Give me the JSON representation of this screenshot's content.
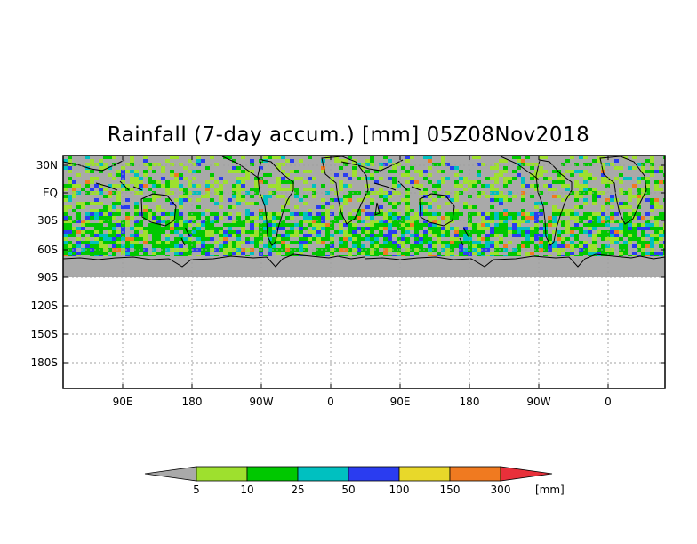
{
  "title": "Rainfall (7-day accum.) [mm] 05Z08Nov2018",
  "colors": {
    "background": "#ffffff",
    "ocean_land_no_rain": "#a9a9a9",
    "grid": "#a0a0a0",
    "coast": "#000000",
    "frame": "#000000"
  },
  "lat_labels": [
    "30N",
    "EQ",
    "30S",
    "60S",
    "90S",
    "120S",
    "150S",
    "180S"
  ],
  "lon_labels": [
    "90E",
    "180",
    "90W",
    "0",
    "90E",
    "180",
    "90W",
    "0"
  ],
  "colorbar": {
    "unit": "[mm]",
    "below_color": "#a9a9a9",
    "above_color": "#e8303a",
    "bins": [
      {
        "color": "#9ee02e"
      },
      {
        "color": "#00c800"
      },
      {
        "color": "#00c0c0"
      },
      {
        "color": "#2a3cf0"
      },
      {
        "color": "#e8d82a"
      },
      {
        "color": "#f07a20"
      }
    ],
    "tick_labels": [
      "5",
      "10",
      "25",
      "50",
      "100",
      "150",
      "300"
    ]
  }
}
